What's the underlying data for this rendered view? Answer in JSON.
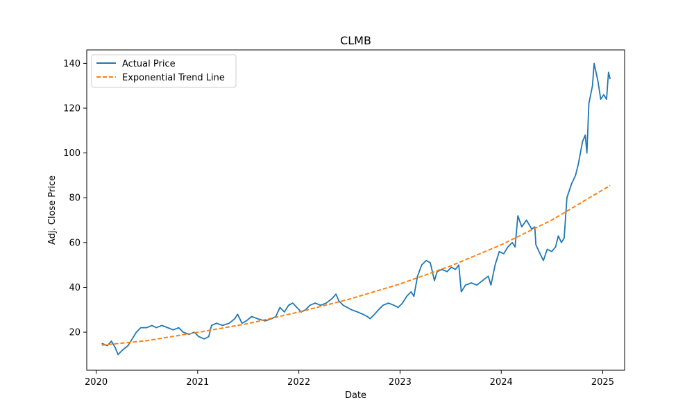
{
  "chart_data": {
    "type": "line",
    "title": "CLMB",
    "xlabel": "Date",
    "ylabel": "Adj. Close Price",
    "xlim": [
      "2019-11-28",
      "2025-03-21"
    ],
    "ylim": [
      3,
      146
    ],
    "x_ticks": [
      "2020",
      "2021",
      "2022",
      "2023",
      "2024",
      "2025"
    ],
    "y_ticks": [
      20,
      40,
      60,
      80,
      100,
      120,
      140
    ],
    "grid": false,
    "legend": {
      "placement": "upper-left"
    },
    "series": [
      {
        "name": "Actual Price",
        "color": "#1f77b4",
        "style": "solid",
        "points": [
          [
            "2020-01-21",
            15
          ],
          [
            "2020-02-10",
            14
          ],
          [
            "2020-02-25",
            16
          ],
          [
            "2020-03-10",
            13
          ],
          [
            "2020-03-20",
            10
          ],
          [
            "2020-04-05",
            12
          ],
          [
            "2020-04-25",
            14
          ],
          [
            "2020-05-10",
            17
          ],
          [
            "2020-05-25",
            20
          ],
          [
            "2020-06-10",
            22
          ],
          [
            "2020-07-01",
            22
          ],
          [
            "2020-07-20",
            23
          ],
          [
            "2020-08-05",
            22
          ],
          [
            "2020-08-25",
            23
          ],
          [
            "2020-09-15",
            22
          ],
          [
            "2020-10-05",
            21
          ],
          [
            "2020-10-25",
            22
          ],
          [
            "2020-11-10",
            20
          ],
          [
            "2020-12-01",
            19
          ],
          [
            "2020-12-20",
            20
          ],
          [
            "2021-01-05",
            18
          ],
          [
            "2021-01-25",
            17
          ],
          [
            "2021-02-10",
            18
          ],
          [
            "2021-02-20",
            23
          ],
          [
            "2021-03-10",
            24
          ],
          [
            "2021-04-01",
            23
          ],
          [
            "2021-04-25",
            24
          ],
          [
            "2021-05-15",
            26
          ],
          [
            "2021-05-25",
            28
          ],
          [
            "2021-06-10",
            24
          ],
          [
            "2021-06-25",
            25
          ],
          [
            "2021-07-15",
            27
          ],
          [
            "2021-08-05",
            26
          ],
          [
            "2021-09-01",
            25
          ],
          [
            "2021-09-25",
            26
          ],
          [
            "2021-10-10",
            27
          ],
          [
            "2021-10-25",
            31
          ],
          [
            "2021-11-10",
            29
          ],
          [
            "2021-11-25",
            32
          ],
          [
            "2021-12-10",
            33
          ],
          [
            "2021-12-25",
            31
          ],
          [
            "2022-01-10",
            29
          ],
          [
            "2022-01-25",
            30
          ],
          [
            "2022-02-10",
            32
          ],
          [
            "2022-03-01",
            33
          ],
          [
            "2022-03-20",
            32
          ],
          [
            "2022-04-10",
            33
          ],
          [
            "2022-05-01",
            35
          ],
          [
            "2022-05-15",
            37
          ],
          [
            "2022-05-25",
            34
          ],
          [
            "2022-06-10",
            32
          ],
          [
            "2022-06-25",
            31
          ],
          [
            "2022-07-10",
            30
          ],
          [
            "2022-08-01",
            29
          ],
          [
            "2022-08-20",
            28
          ],
          [
            "2022-09-05",
            27
          ],
          [
            "2022-09-15",
            26
          ],
          [
            "2022-10-01",
            28
          ],
          [
            "2022-10-15",
            30
          ],
          [
            "2022-11-01",
            32
          ],
          [
            "2022-11-20",
            33
          ],
          [
            "2022-12-10",
            32
          ],
          [
            "2022-12-25",
            31
          ],
          [
            "2023-01-10",
            33
          ],
          [
            "2023-01-25",
            36
          ],
          [
            "2023-02-10",
            38
          ],
          [
            "2023-02-20",
            36
          ],
          [
            "2023-03-05",
            45
          ],
          [
            "2023-03-20",
            50
          ],
          [
            "2023-04-05",
            52
          ],
          [
            "2023-04-20",
            51
          ],
          [
            "2023-05-05",
            43
          ],
          [
            "2023-05-15",
            47
          ],
          [
            "2023-06-01",
            48
          ],
          [
            "2023-06-20",
            47
          ],
          [
            "2023-07-05",
            49
          ],
          [
            "2023-07-20",
            48
          ],
          [
            "2023-08-01",
            50
          ],
          [
            "2023-08-10",
            38
          ],
          [
            "2023-08-25",
            41
          ],
          [
            "2023-09-15",
            42
          ],
          [
            "2023-10-05",
            41
          ],
          [
            "2023-10-25",
            43
          ],
          [
            "2023-11-15",
            45
          ],
          [
            "2023-11-25",
            41
          ],
          [
            "2023-12-10",
            50
          ],
          [
            "2023-12-25",
            56
          ],
          [
            "2024-01-10",
            55
          ],
          [
            "2024-01-25",
            58
          ],
          [
            "2024-02-10",
            60
          ],
          [
            "2024-02-20",
            58
          ],
          [
            "2024-03-01",
            72
          ],
          [
            "2024-03-15",
            67
          ],
          [
            "2024-04-01",
            70
          ],
          [
            "2024-04-20",
            66
          ],
          [
            "2024-05-01",
            67
          ],
          [
            "2024-05-05",
            59
          ],
          [
            "2024-05-20",
            55
          ],
          [
            "2024-06-01",
            52
          ],
          [
            "2024-06-15",
            57
          ],
          [
            "2024-07-01",
            56
          ],
          [
            "2024-07-15",
            58
          ],
          [
            "2024-07-25",
            63
          ],
          [
            "2024-08-05",
            60
          ],
          [
            "2024-08-15",
            62
          ],
          [
            "2024-08-25",
            80
          ],
          [
            "2024-09-10",
            86
          ],
          [
            "2024-09-25",
            90
          ],
          [
            "2024-10-05",
            95
          ],
          [
            "2024-10-20",
            105
          ],
          [
            "2024-10-30",
            108
          ],
          [
            "2024-11-05",
            100
          ],
          [
            "2024-11-12",
            122
          ],
          [
            "2024-11-25",
            130
          ],
          [
            "2024-12-01",
            140
          ],
          [
            "2024-12-15",
            132
          ],
          [
            "2024-12-25",
            124
          ],
          [
            "2025-01-05",
            126
          ],
          [
            "2025-01-15",
            124
          ],
          [
            "2025-01-22",
            136
          ],
          [
            "2025-01-28",
            133
          ]
        ]
      },
      {
        "name": "Exponential Trend Line",
        "color": "#ff7f0e",
        "style": "dashed",
        "points": [
          [
            "2020-01-21",
            14.2
          ],
          [
            "2020-07-01",
            16.2
          ],
          [
            "2021-01-01",
            19.9
          ],
          [
            "2021-07-01",
            23.8
          ],
          [
            "2022-01-01",
            29.0
          ],
          [
            "2022-07-01",
            34.7
          ],
          [
            "2023-01-01",
            41.5
          ],
          [
            "2023-07-01",
            49.5
          ],
          [
            "2024-01-01",
            59.0
          ],
          [
            "2024-07-01",
            70.0
          ],
          [
            "2025-01-28",
            85.5
          ]
        ]
      }
    ]
  }
}
